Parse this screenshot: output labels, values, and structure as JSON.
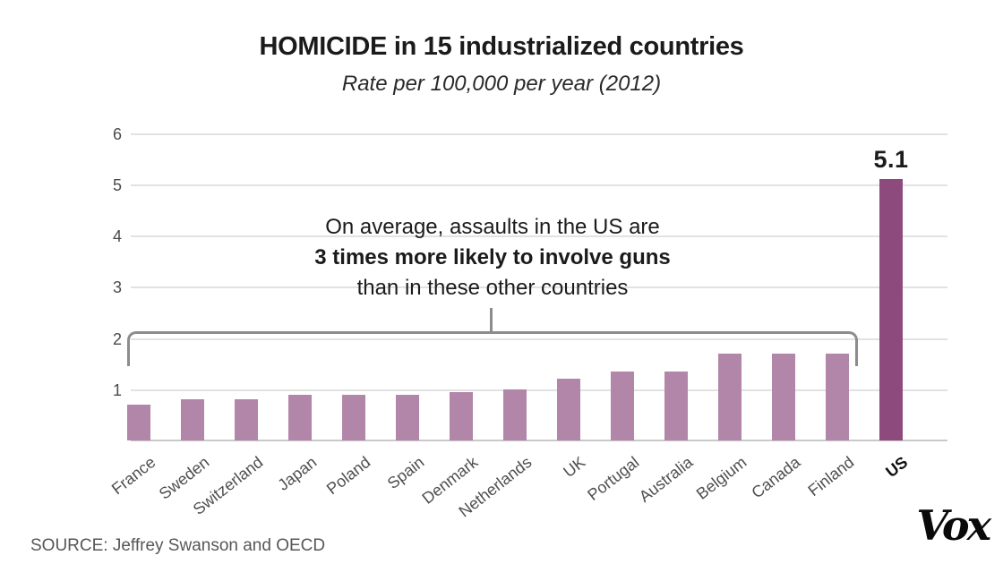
{
  "page": {
    "title": "HOMICIDE in 15 industrialized countries",
    "subtitle": "Rate per 100,000 per year (2012)",
    "source": "SOURCE: Jeffrey Swanson and OECD",
    "brand": "Vox"
  },
  "annotation": {
    "line1": "On average, assaults in the US are",
    "line2": "3 times more likely to involve guns",
    "line3": "than in these other countries"
  },
  "chart_data": {
    "type": "bar",
    "title": "HOMICIDE in 15 industrialized countries",
    "subtitle": "Rate per 100,000 per year (2012)",
    "categories": [
      "France",
      "Sweden",
      "Switzerland",
      "Japan",
      "Poland",
      "Spain",
      "Denmark",
      "Netherlands",
      "UK",
      "Portugal",
      "Australia",
      "Belgium",
      "Canada",
      "Finland",
      "US"
    ],
    "values": [
      0.7,
      0.8,
      0.8,
      0.9,
      0.9,
      0.9,
      0.95,
      1.0,
      1.2,
      1.35,
      1.35,
      1.7,
      1.7,
      1.7,
      5.1
    ],
    "highlight_category": "US",
    "highlight_value_label": "5.1",
    "ylim": [
      0,
      6
    ],
    "yticks": [
      1,
      2,
      3,
      4,
      5,
      6
    ],
    "grid": true,
    "legend_position": "none",
    "bar_color": "#b286a8",
    "highlight_color": "#8d4b7d",
    "gridline_color": "#e2e2e2",
    "bracket_countries_from": "France",
    "bracket_countries_to": "Finland",
    "source": "SOURCE: Jeffrey Swanson and OECD"
  }
}
